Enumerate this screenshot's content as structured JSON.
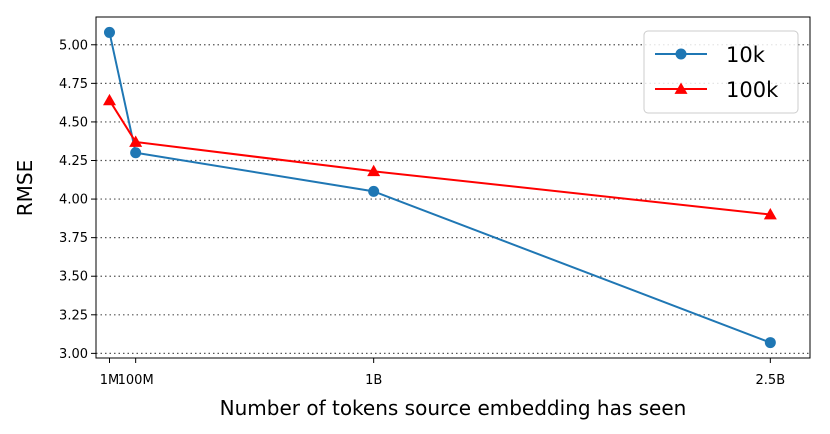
{
  "chart_data": {
    "type": "line",
    "xlabel": "Number of tokens source embedding has seen",
    "ylabel": "RMSE",
    "x_ticks": [
      {
        "value": 1000000,
        "label": "1M"
      },
      {
        "value": 100000000,
        "label": "100M"
      },
      {
        "value": 1000000000,
        "label": "1B"
      },
      {
        "value": 2500000000,
        "label": "2.5B"
      }
    ],
    "y_ticks": [
      3.0,
      3.25,
      3.5,
      3.75,
      4.0,
      4.25,
      4.5,
      4.75,
      5.0
    ],
    "y_tick_labels": [
      "3.00",
      "3.25",
      "3.50",
      "3.75",
      "4.00",
      "4.25",
      "4.50",
      "4.75",
      "5.00"
    ],
    "xlim": [
      -50000000,
      2650000000
    ],
    "ylim": [
      2.97,
      5.18
    ],
    "grid": "horizontal-dotted",
    "legend_position": "top-right",
    "series": [
      {
        "name": "10k",
        "color": "#1f77b4",
        "marker": "circle",
        "x": [
          1000000,
          100000000,
          1000000000,
          2500000000
        ],
        "y": [
          5.08,
          4.3,
          4.05,
          3.07
        ]
      },
      {
        "name": "100k",
        "color": "#ff0000",
        "marker": "triangle",
        "x": [
          1000000,
          100000000,
          1000000000,
          2500000000
        ],
        "y": [
          4.64,
          4.37,
          4.18,
          3.9
        ]
      }
    ]
  }
}
